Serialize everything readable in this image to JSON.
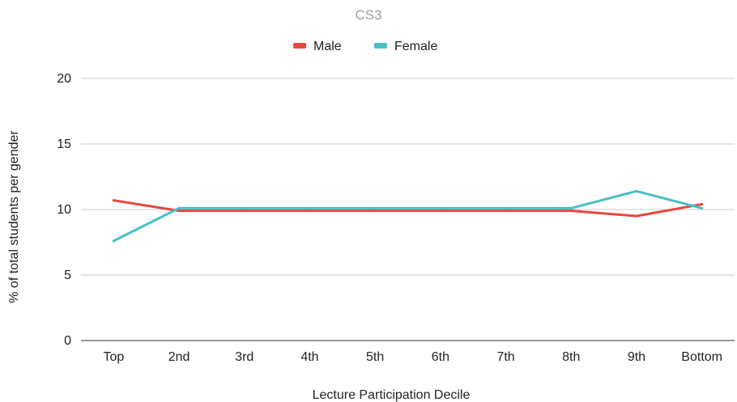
{
  "chart_data": {
    "type": "line",
    "title": "CS3",
    "xlabel": "Lecture Participation Decile",
    "ylabel": "% of total students per gender",
    "categories": [
      "Top",
      "2nd",
      "3rd",
      "4th",
      "5th",
      "6th",
      "7th",
      "8th",
      "9th",
      "Bottom"
    ],
    "ylim": [
      0,
      20
    ],
    "yticks": [
      0,
      5,
      10,
      15,
      20
    ],
    "grid": true,
    "legend_position": "top",
    "series": [
      {
        "name": "Male",
        "color": "#e8473c",
        "values": [
          10.7,
          9.9,
          9.9,
          9.9,
          9.9,
          9.9,
          9.9,
          9.9,
          9.5,
          10.4
        ]
      },
      {
        "name": "Female",
        "color": "#4bbec6",
        "values": [
          7.6,
          10.1,
          10.1,
          10.1,
          10.1,
          10.1,
          10.1,
          10.1,
          11.4,
          10.1
        ]
      }
    ]
  }
}
